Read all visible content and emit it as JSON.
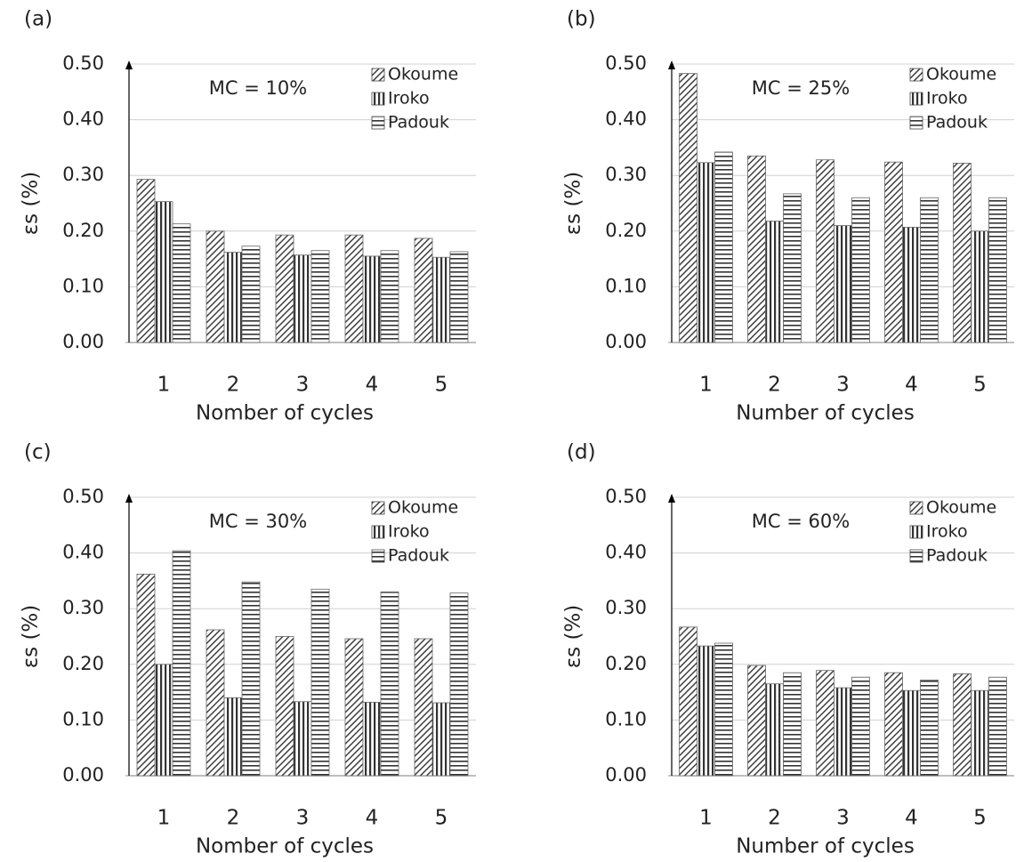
{
  "chart_data": [
    {
      "type": "bar",
      "panel_label": "(a)",
      "annotation": "MC = 10%",
      "ylabel": "εs (%)",
      "xlabel": "Nomber of cycles",
      "categories": [
        "1",
        "2",
        "3",
        "4",
        "5"
      ],
      "series": [
        {
          "name": "Okoume",
          "color": "#333333",
          "pattern": "diagonal",
          "values": [
            0.293,
            0.2,
            0.193,
            0.193,
            0.187
          ]
        },
        {
          "name": "Iroko",
          "color": "#333333",
          "pattern": "vertical",
          "values": [
            0.253,
            0.162,
            0.157,
            0.155,
            0.153
          ]
        },
        {
          "name": "Padouk",
          "color": "#333333",
          "pattern": "horizontal",
          "values": [
            0.213,
            0.173,
            0.165,
            0.165,
            0.163
          ]
        }
      ],
      "ylim": [
        0,
        0.5
      ],
      "yticks": [
        {
          "value": 0,
          "label": "0.00"
        },
        {
          "value": 0.1,
          "label": "0.10"
        },
        {
          "value": 0.2,
          "label": "0.20"
        },
        {
          "value": 0.3,
          "label": "0.30"
        },
        {
          "value": 0.4,
          "label": "0.40"
        },
        {
          "value": 0.5,
          "label": "0.50"
        }
      ],
      "grid": true,
      "legend": "upper right"
    },
    {
      "type": "bar",
      "panel_label": "(b)",
      "annotation": "MC = 25%",
      "ylabel": "εs (%)",
      "xlabel": "Number of cycles",
      "categories": [
        "1",
        "2",
        "3",
        "4",
        "5"
      ],
      "series": [
        {
          "name": "Okoume",
          "color": "#333333",
          "pattern": "diagonal",
          "values": [
            0.483,
            0.335,
            0.328,
            0.324,
            0.322
          ]
        },
        {
          "name": "Iroko",
          "color": "#333333",
          "pattern": "vertical",
          "values": [
            0.323,
            0.218,
            0.21,
            0.207,
            0.2
          ]
        },
        {
          "name": "Padouk",
          "color": "#333333",
          "pattern": "horizontal",
          "values": [
            0.342,
            0.267,
            0.26,
            0.26,
            0.26
          ]
        }
      ],
      "ylim": [
        0,
        0.5
      ],
      "yticks": [
        {
          "value": 0,
          "label": "0.00"
        },
        {
          "value": 0.1,
          "label": "0.10"
        },
        {
          "value": 0.2,
          "label": "0.20"
        },
        {
          "value": 0.3,
          "label": "0.30"
        },
        {
          "value": 0.4,
          "label": "0.40"
        },
        {
          "value": 0.5,
          "label": "0.50"
        }
      ],
      "grid": true,
      "legend": "upper right"
    },
    {
      "type": "bar",
      "panel_label": "(c)",
      "annotation": "MC = 30%",
      "ylabel": "εs (%)",
      "xlabel": "Nomber of cycles",
      "categories": [
        "1",
        "2",
        "3",
        "4",
        "5"
      ],
      "series": [
        {
          "name": "Okoume",
          "color": "#333333",
          "pattern": "diagonal",
          "values": [
            0.362,
            0.262,
            0.25,
            0.246,
            0.246
          ]
        },
        {
          "name": "Iroko",
          "color": "#333333",
          "pattern": "vertical",
          "values": [
            0.2,
            0.14,
            0.133,
            0.132,
            0.131
          ]
        },
        {
          "name": "Padouk",
          "color": "#333333",
          "pattern": "horizontal",
          "values": [
            0.404,
            0.348,
            0.335,
            0.33,
            0.328
          ]
        }
      ],
      "ylim": [
        0,
        0.5
      ],
      "yticks": [
        {
          "value": 0,
          "label": "0.00"
        },
        {
          "value": 0.1,
          "label": "0.10"
        },
        {
          "value": 0.2,
          "label": "0.20"
        },
        {
          "value": 0.3,
          "label": "0.30"
        },
        {
          "value": 0.4,
          "label": "0.40"
        },
        {
          "value": 0.5,
          "label": "0.50"
        }
      ],
      "grid": true,
      "legend": "upper right"
    },
    {
      "type": "bar",
      "panel_label": "(d)",
      "annotation": "MC = 60%",
      "ylabel": "εs (%)",
      "xlabel": "Number of cycles",
      "categories": [
        "1",
        "2",
        "3",
        "4",
        "5"
      ],
      "series": [
        {
          "name": "Okoume",
          "color": "#333333",
          "pattern": "diagonal",
          "values": [
            0.267,
            0.198,
            0.189,
            0.185,
            0.183
          ]
        },
        {
          "name": "Iroko",
          "color": "#333333",
          "pattern": "vertical",
          "values": [
            0.233,
            0.165,
            0.158,
            0.153,
            0.153
          ]
        },
        {
          "name": "Padouk",
          "color": "#333333",
          "pattern": "horizontal",
          "values": [
            0.238,
            0.185,
            0.177,
            0.172,
            0.177
          ]
        }
      ],
      "ylim": [
        0,
        0.5
      ],
      "yticks": [
        {
          "value": 0,
          "label": "0.00"
        },
        {
          "value": 0.1,
          "label": "0.10"
        },
        {
          "value": 0.2,
          "label": "0.20"
        },
        {
          "value": 0.3,
          "label": "0.30"
        },
        {
          "value": 0.4,
          "label": "0.40"
        },
        {
          "value": 0.5,
          "label": "0.50"
        }
      ],
      "grid": true,
      "legend": "upper right"
    }
  ]
}
